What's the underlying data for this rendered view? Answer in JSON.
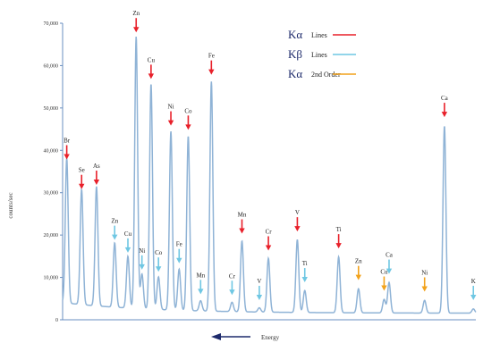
{
  "chart_data": {
    "type": "line",
    "title": "",
    "xlabel": "Energy",
    "ylabel": "counts/sec",
    "ylim": [
      0,
      70000
    ],
    "y_ticks": [
      "0",
      "10,000",
      "20,000",
      "30,000",
      "40,000",
      "50,000",
      "60,000",
      "70,000"
    ],
    "x_direction": "decreasing-energy-to-right",
    "grid": false,
    "legend": {
      "placement": "top-center",
      "entries": [
        {
          "symbol": "Kα",
          "text": "Lines",
          "color": "#e8202a"
        },
        {
          "symbol": "Kβ",
          "text": "Lines",
          "color": "#6fc7e3"
        },
        {
          "symbol": "Kα",
          "text": "2nd Order",
          "color": "#f2a21b"
        }
      ]
    },
    "series": [
      {
        "color": "#8fb3d6",
        "baseline": 2800,
        "peaks": [
          {
            "label": "Br",
            "x": 0.01,
            "y": 37000,
            "marker": "ka"
          },
          {
            "label": "Se",
            "x": 0.046,
            "y": 30000,
            "marker": "ka"
          },
          {
            "label": "As",
            "x": 0.082,
            "y": 31000,
            "marker": "ka"
          },
          {
            "label": "Zn",
            "x": 0.126,
            "y": 18000,
            "marker": "kb"
          },
          {
            "label": "Cu",
            "x": 0.158,
            "y": 15000,
            "marker": "kb"
          },
          {
            "label": "Zn",
            "x": 0.178,
            "y": 67000,
            "marker": "ka"
          },
          {
            "label": "Ni",
            "x": 0.192,
            "y": 11000,
            "marker": "kb"
          },
          {
            "label": "Cu",
            "x": 0.214,
            "y": 56000,
            "marker": "ka"
          },
          {
            "label": "Co",
            "x": 0.232,
            "y": 10500,
            "marker": "kb"
          },
          {
            "label": "Ni",
            "x": 0.262,
            "y": 45000,
            "marker": "ka"
          },
          {
            "label": "Fe",
            "x": 0.282,
            "y": 12500,
            "marker": "kb"
          },
          {
            "label": "Co",
            "x": 0.304,
            "y": 44000,
            "marker": "ka"
          },
          {
            "label": "Mn",
            "x": 0.334,
            "y": 5200,
            "marker": "kb"
          },
          {
            "label": "Fe",
            "x": 0.36,
            "y": 57000,
            "marker": "ka"
          },
          {
            "label": "Cr",
            "x": 0.41,
            "y": 5000,
            "marker": "kb"
          },
          {
            "label": "Mn",
            "x": 0.434,
            "y": 19500,
            "marker": "ka"
          },
          {
            "label": "V",
            "x": 0.476,
            "y": 3800,
            "marker": "kb"
          },
          {
            "label": "Cr",
            "x": 0.498,
            "y": 15500,
            "marker": "ka"
          },
          {
            "label": "V",
            "x": 0.568,
            "y": 20000,
            "marker": "ka"
          },
          {
            "label": "Ti",
            "x": 0.586,
            "y": 8000,
            "marker": "kb"
          },
          {
            "label": "Ti",
            "x": 0.668,
            "y": 16000,
            "marker": "ka"
          },
          {
            "label": "Zn",
            "x": 0.716,
            "y": 8500,
            "marker": "ka2"
          },
          {
            "label": "Cu",
            "x": 0.778,
            "y": 6000,
            "marker": "ka2"
          },
          {
            "label": "Ca",
            "x": 0.79,
            "y": 10000,
            "marker": "kb"
          },
          {
            "label": "Ni",
            "x": 0.876,
            "y": 5800,
            "marker": "ka2"
          },
          {
            "label": "Ca",
            "x": 0.924,
            "y": 47000,
            "marker": "ka"
          },
          {
            "label": "K",
            "x": 0.994,
            "y": 3800,
            "marker": "kb"
          }
        ]
      }
    ]
  }
}
